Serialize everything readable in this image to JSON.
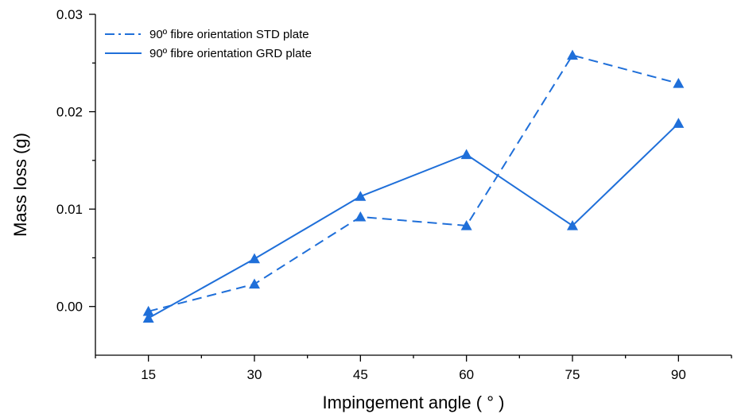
{
  "chart_data": {
    "type": "line",
    "title": "",
    "xlabel": "Impingement angle ( ° )",
    "ylabel": "Mass loss (g)",
    "x": [
      15,
      30,
      45,
      60,
      75,
      90
    ],
    "x_tick_labels": [
      "15",
      "30",
      "45",
      "60",
      "75",
      "90"
    ],
    "xlim": [
      7.5,
      97.5
    ],
    "ylim": [
      -0.005,
      0.03
    ],
    "y_ticks": [
      0.0,
      0.01,
      0.02,
      0.03
    ],
    "y_tick_labels": [
      "0.00",
      "0.01",
      "0.02",
      "0.03"
    ],
    "grid": false,
    "legend_position": "top-left",
    "color": "#1f6fd9",
    "marker": "triangle",
    "series": [
      {
        "name": "90º fibre orientation STD plate",
        "line_style": "dash",
        "values": [
          -0.0005,
          0.0023,
          0.0092,
          0.0083,
          0.0258,
          0.0229
        ]
      },
      {
        "name": "90º fibre orientation GRD plate",
        "line_style": "solid",
        "values": [
          -0.0012,
          0.0049,
          0.0113,
          0.0156,
          0.0083,
          0.0188
        ]
      }
    ]
  }
}
